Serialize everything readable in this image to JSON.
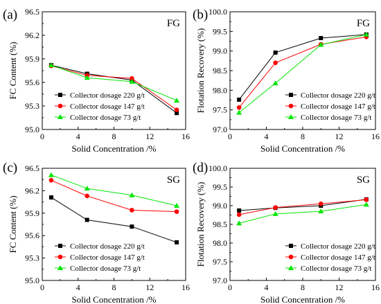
{
  "chart_data": [
    {
      "panel_label": "(a)",
      "tag": "FG",
      "type": "line",
      "xlabel": "Solid Concentration /%",
      "ylabel": "FC Content (%)",
      "xlim": [
        0,
        16
      ],
      "ylim": [
        95.0,
        96.5
      ],
      "xticks": [
        0,
        4,
        8,
        12,
        16
      ],
      "yticks": [
        95.0,
        95.3,
        95.6,
        95.9,
        96.2,
        96.5
      ],
      "ytick_decimals": 1,
      "legend_position": "bottom-left",
      "series": [
        {
          "name": "Collector dosage 220 g/t",
          "color": "#000000",
          "marker": "square",
          "x": [
            1,
            5,
            10,
            15
          ],
          "values": [
            95.82,
            95.71,
            95.63,
            95.21
          ]
        },
        {
          "name": "Collector dosage 147 g/t",
          "color": "#ff0000",
          "marker": "circle",
          "x": [
            1,
            5,
            10,
            15
          ],
          "values": [
            95.81,
            95.69,
            95.65,
            95.25
          ]
        },
        {
          "name": "Collector dosage 73 g/t",
          "color": "#00e600",
          "marker": "triangle",
          "x": [
            1,
            5,
            10,
            15
          ],
          "values": [
            95.82,
            95.66,
            95.61,
            95.37
          ]
        }
      ]
    },
    {
      "panel_label": "(b)",
      "tag": "FG",
      "type": "line",
      "xlabel": "Solid Concentration /%",
      "ylabel": "Flotation Recovery (%)",
      "xlim": [
        0,
        16
      ],
      "ylim": [
        97.0,
        100.0
      ],
      "xticks": [
        0,
        4,
        8,
        12,
        16
      ],
      "yticks": [
        97.0,
        97.5,
        98.0,
        98.5,
        99.0,
        99.5,
        100.0
      ],
      "ytick_decimals": 1,
      "legend_position": "bottom-right",
      "series": [
        {
          "name": "Collector dosage 220 g/t",
          "color": "#000000",
          "marker": "square",
          "x": [
            1,
            5,
            10,
            15
          ],
          "values": [
            97.76,
            98.96,
            99.33,
            99.42
          ]
        },
        {
          "name": "Collector dosage 147 g/t",
          "color": "#ff0000",
          "marker": "circle",
          "x": [
            1,
            5,
            10,
            15
          ],
          "values": [
            97.56,
            98.7,
            99.17,
            99.36
          ]
        },
        {
          "name": "Collector dosage 73 g/t",
          "color": "#00e600",
          "marker": "triangle",
          "x": [
            1,
            5,
            10,
            15
          ],
          "values": [
            97.43,
            98.18,
            99.16,
            99.42
          ]
        }
      ]
    },
    {
      "panel_label": "(c)",
      "tag": "SG",
      "type": "line",
      "xlabel": "Solid Concentration /%",
      "ylabel": "FC Content (%)",
      "xlim": [
        0,
        16
      ],
      "ylim": [
        95.0,
        96.5
      ],
      "xticks": [
        0,
        4,
        8,
        12,
        16
      ],
      "yticks": [
        95.0,
        95.3,
        95.6,
        95.9,
        96.2,
        96.5
      ],
      "ytick_decimals": 1,
      "legend_position": "bottom-left",
      "series": [
        {
          "name": "Collector dosage 220 g/t",
          "color": "#000000",
          "marker": "square",
          "x": [
            1,
            5,
            10,
            15
          ],
          "values": [
            96.11,
            95.81,
            95.72,
            95.51
          ]
        },
        {
          "name": "Collector dosage 147 g/t",
          "color": "#ff0000",
          "marker": "circle",
          "x": [
            1,
            5,
            10,
            15
          ],
          "values": [
            96.34,
            96.13,
            95.94,
            95.92
          ]
        },
        {
          "name": "Collector dosage 73 g/t",
          "color": "#00e600",
          "marker": "triangle",
          "x": [
            1,
            5,
            10,
            15
          ],
          "values": [
            96.41,
            96.23,
            96.14,
            96.0
          ]
        }
      ]
    },
    {
      "panel_label": "(d)",
      "tag": "SG",
      "type": "line",
      "xlabel": "Solid Concentration /%",
      "ylabel": "Flotation Recovery (%)",
      "xlim": [
        0,
        16
      ],
      "ylim": [
        97.0,
        100.0
      ],
      "xticks": [
        0,
        4,
        8,
        12,
        16
      ],
      "yticks": [
        97.0,
        97.5,
        98.0,
        98.5,
        99.0,
        99.5,
        100.0
      ],
      "ytick_decimals": 1,
      "legend_position": "bottom-right",
      "series": [
        {
          "name": "Collector dosage 220 g/t",
          "color": "#000000",
          "marker": "square",
          "x": [
            1,
            5,
            10,
            15
          ],
          "values": [
            98.87,
            98.94,
            99.0,
            99.17
          ]
        },
        {
          "name": "Collector dosage 147 g/t",
          "color": "#ff0000",
          "marker": "circle",
          "x": [
            1,
            5,
            10,
            15
          ],
          "values": [
            98.76,
            98.95,
            99.05,
            99.16
          ]
        },
        {
          "name": "Collector dosage 73 g/t",
          "color": "#00e600",
          "marker": "triangle",
          "x": [
            1,
            5,
            10,
            15
          ],
          "values": [
            98.53,
            98.78,
            98.85,
            99.03
          ]
        }
      ]
    }
  ]
}
